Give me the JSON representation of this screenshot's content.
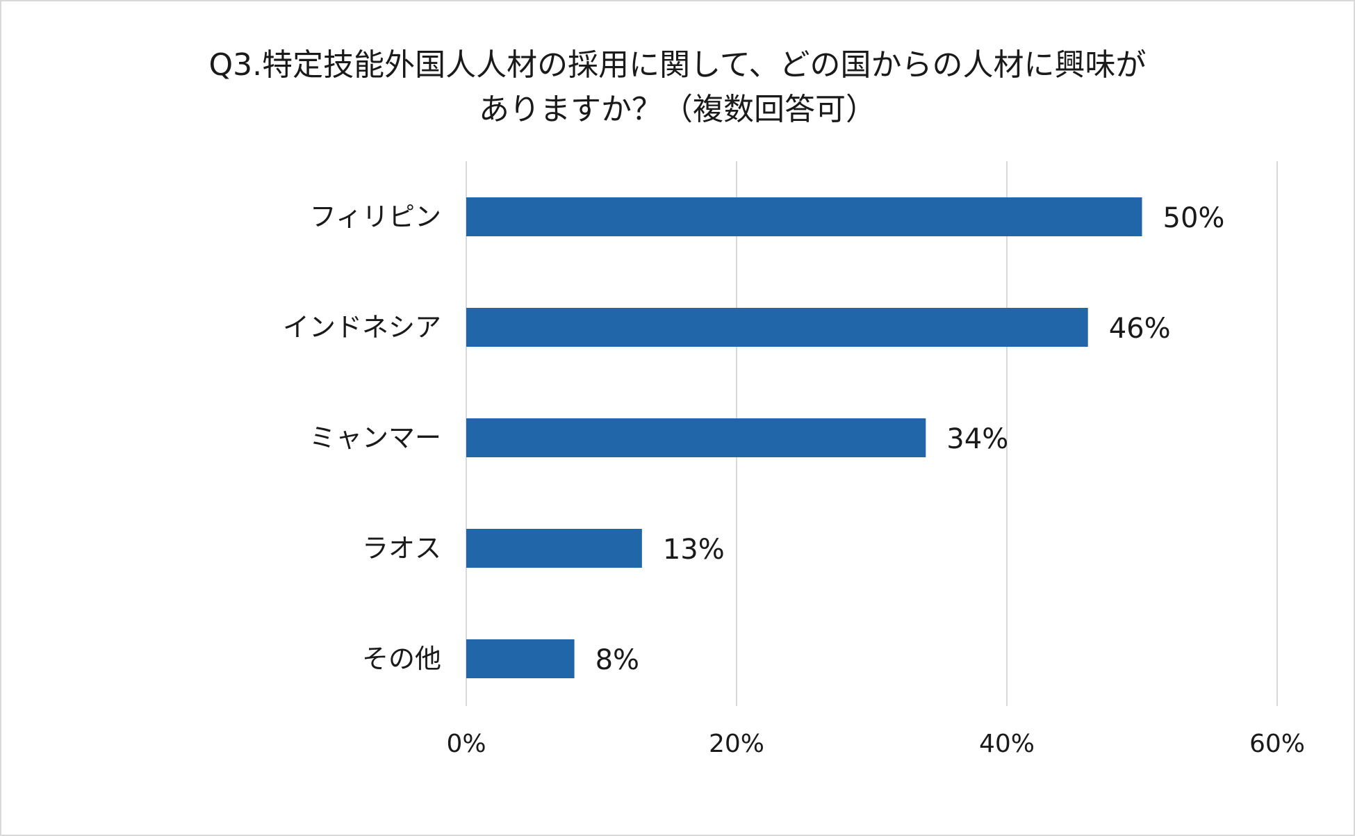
{
  "chart_data": {
    "type": "bar",
    "orientation": "horizontal",
    "title_lines": [
      "Q3.特定技能外国人人材の採用に関して、どの国からの人材に興味が",
      "ありますか？（複数回答可）"
    ],
    "categories": [
      "フィリピン",
      "インドネシア",
      "ミャンマー",
      "ラオス",
      "その他"
    ],
    "values": [
      50,
      46,
      34,
      13,
      8
    ],
    "value_labels": [
      "50%",
      "46%",
      "34%",
      "13%",
      "8%"
    ],
    "xlim": [
      0,
      60
    ],
    "xticks": [
      0,
      20,
      40,
      60
    ],
    "xtick_labels": [
      "0%",
      "20%",
      "40%",
      "60%"
    ],
    "grid": true,
    "bar_color": "#2166a8",
    "grid_color": "#d9d9d9"
  }
}
